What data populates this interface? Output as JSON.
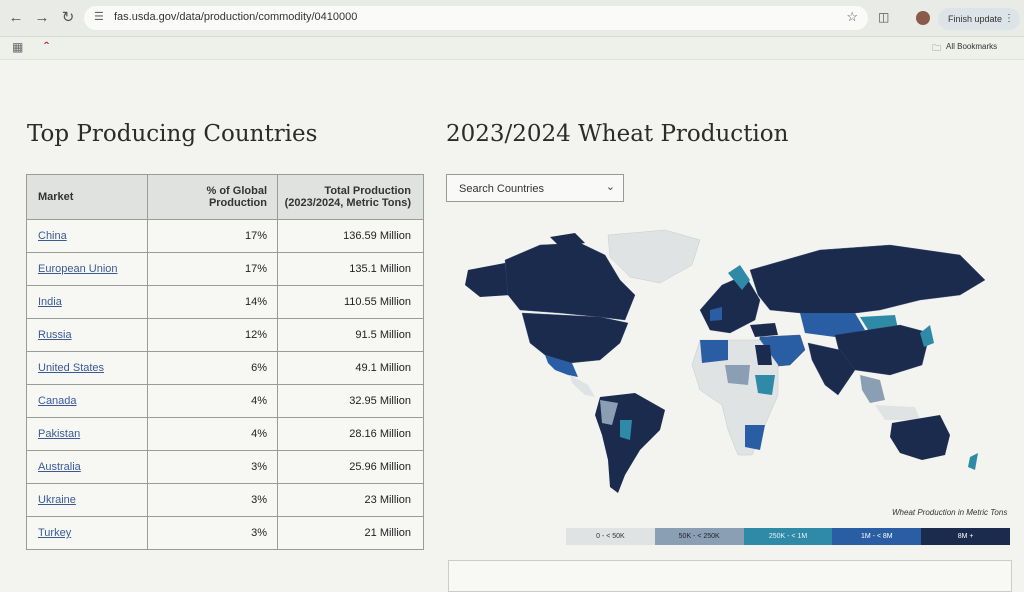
{
  "browser": {
    "url": "fas.usda.gov/data/production/commodity/0410000",
    "finish_update": "Finish update",
    "all_bookmarks": "All Bookmarks"
  },
  "left_title": "Top Producing Countries",
  "right_title": "2023/2024 Wheat Production",
  "table": {
    "headers": {
      "market": "Market",
      "pct_line1": "% of Global",
      "pct_line2": "Production",
      "total_line1": "Total Production",
      "total_line2": "(2023/2024, Metric Tons)"
    },
    "rows": [
      {
        "market": "China",
        "pct": "17%",
        "total": "136.59 Million"
      },
      {
        "market": "European Union",
        "pct": "17%",
        "total": "135.1 Million"
      },
      {
        "market": "India",
        "pct": "14%",
        "total": "110.55 Million"
      },
      {
        "market": "Russia",
        "pct": "12%",
        "total": "91.5 Million"
      },
      {
        "market": "United States",
        "pct": "6%",
        "total": "49.1 Million"
      },
      {
        "market": "Canada",
        "pct": "4%",
        "total": "32.95 Million"
      },
      {
        "market": "Pakistan",
        "pct": "4%",
        "total": "28.16 Million"
      },
      {
        "market": "Australia",
        "pct": "3%",
        "total": "25.96 Million"
      },
      {
        "market": "Ukraine",
        "pct": "3%",
        "total": "23 Million"
      },
      {
        "market": "Turkey",
        "pct": "3%",
        "total": "21 Million"
      }
    ]
  },
  "search": {
    "placeholder": "Search Countries"
  },
  "legend": {
    "title": "Wheat Production in Metric Tons",
    "items": [
      {
        "label": "0 - < 50K",
        "color": "#dfe3e4"
      },
      {
        "label": "50K - < 250K",
        "color": "#8a9fb3"
      },
      {
        "label": "250K - < 1M",
        "color": "#2f8aa8"
      },
      {
        "label": "1M - < 8M",
        "color": "#2a5ea4"
      },
      {
        "label": "8M +",
        "color": "#1b2b4d"
      }
    ]
  },
  "colors": {
    "dark": "#1b2b4d",
    "mid": "#2a5ea4",
    "teal": "#2f8aa8",
    "gray": "#8a9fb3",
    "light": "#dfe3e4"
  }
}
